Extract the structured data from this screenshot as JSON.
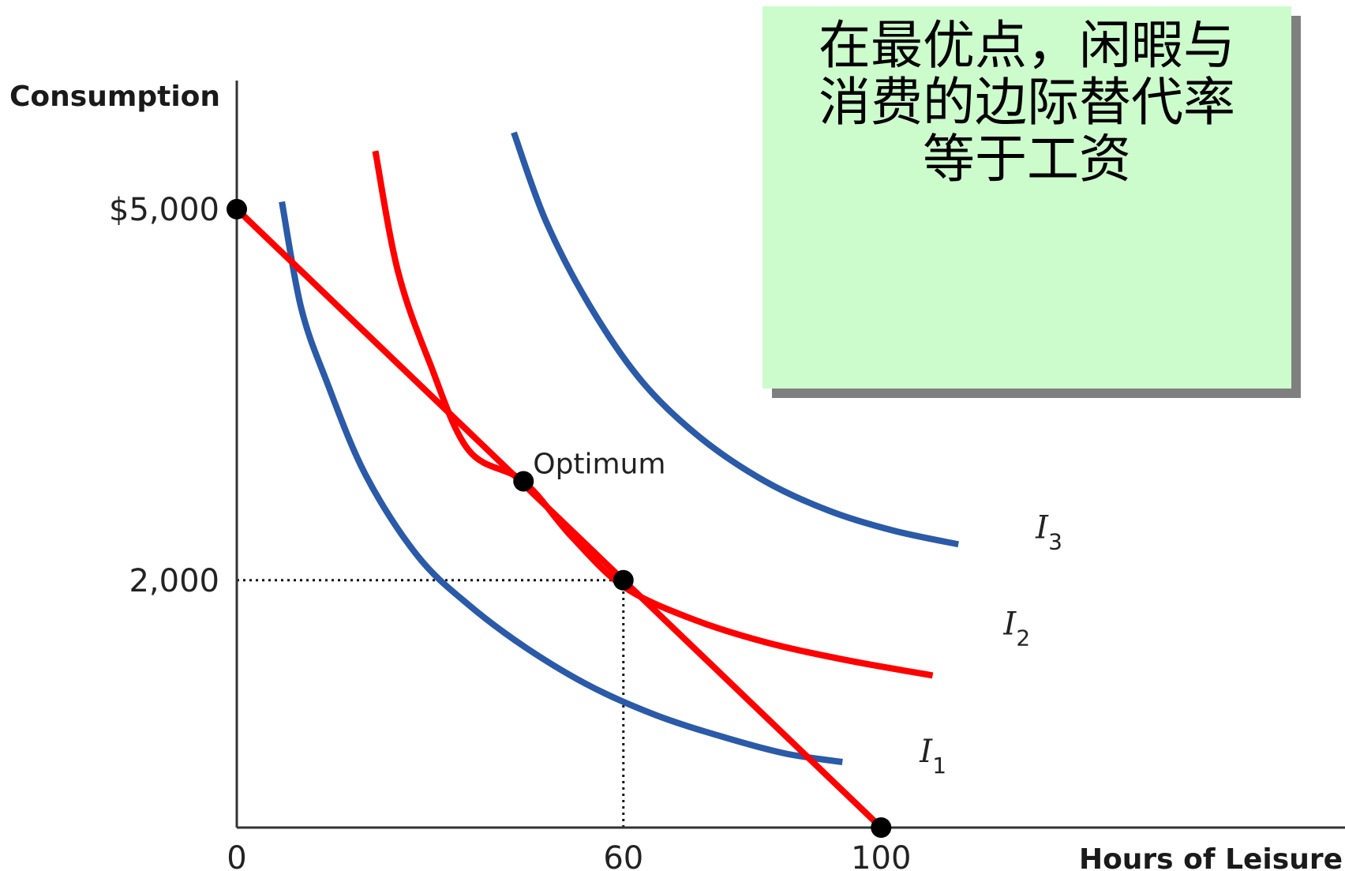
{
  "note": {
    "text": "在最优点，闲暇与\n消费的边际替代率\n等于工资"
  },
  "chart_data": {
    "type": "line",
    "xlabel": "Hours of Leisure",
    "ylabel": "Consumption",
    "x_ticks": [
      {
        "value": 0,
        "label": "0"
      },
      {
        "value": 60,
        "label": "60"
      },
      {
        "value": 100,
        "label": "100"
      }
    ],
    "y_ticks": [
      {
        "value": 5000,
        "label": "$5,000"
      },
      {
        "value": 2000,
        "label": "2,000"
      }
    ],
    "xlim": [
      0,
      172
    ],
    "ylim": [
      0,
      6040
    ],
    "budget_constraint": {
      "color": "#ff0000",
      "x": [
        0,
        100
      ],
      "y": [
        5000,
        0
      ]
    },
    "series": [
      {
        "name": "I1",
        "label": "I",
        "subscript": "1",
        "color": "#2a5aa8",
        "x": [
          7,
          10,
          14,
          20,
          28,
          36,
          45,
          55,
          65,
          75,
          85,
          94,
          106
        ],
        "y": [
          5060,
          4200,
          3600,
          2850,
          2200,
          1800,
          1450,
          1140,
          910,
          740,
          600,
          530,
          530
        ]
      },
      {
        "name": "I2",
        "label": "I",
        "subscript": "2",
        "color": "#ff0000",
        "x": [
          21.5,
          25,
          30,
          36,
          44.5,
          52,
          60,
          70,
          82,
          95,
          108,
          119
        ],
        "y": [
          5470,
          4500,
          3750,
          3050,
          2800,
          2350,
          1950,
          1700,
          1500,
          1350,
          1230,
          1560
        ]
      },
      {
        "name": "I3",
        "label": "I",
        "subscript": "3",
        "color": "#2a5aa8",
        "x": [
          43,
          48,
          55,
          63,
          72,
          82,
          92,
          102,
          112,
          124
        ],
        "y": [
          5620,
          4900,
          4200,
          3600,
          3150,
          2800,
          2560,
          2400,
          2290,
          2340
        ]
      }
    ],
    "points": [
      {
        "x": 0,
        "y": 5000
      },
      {
        "x": 44.5,
        "y": 2800,
        "label": "Optimum"
      },
      {
        "x": 60,
        "y": 2000
      },
      {
        "x": 100,
        "y": 0
      }
    ],
    "guides": [
      {
        "from": [
          0,
          2000
        ],
        "to": [
          60,
          2000
        ]
      },
      {
        "from": [
          60,
          0
        ],
        "to": [
          60,
          2000
        ]
      }
    ],
    "grid": false
  }
}
